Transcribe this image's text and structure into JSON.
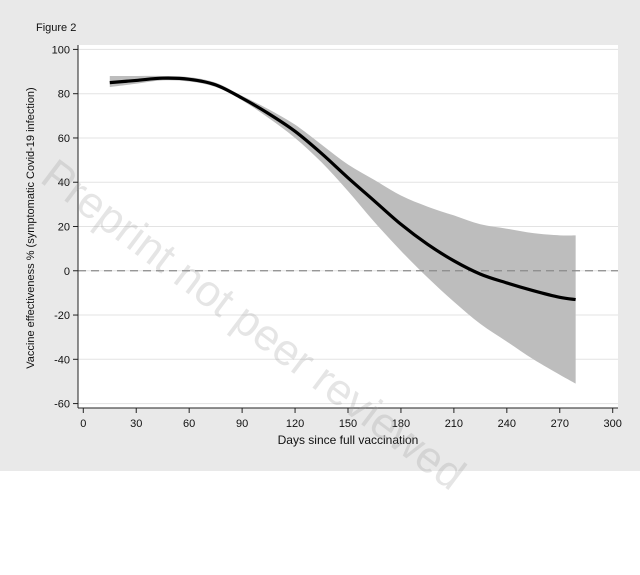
{
  "figure_label": "Figure 2",
  "watermark": "Preprint not peer reviewed",
  "colors": {
    "background": "#e9e9e9",
    "plot_area": "#ffffff",
    "line": "#000000",
    "band": "#bdbdbd",
    "reference_line": "#8a8a8a",
    "grid": "#e3e3e3"
  },
  "chart_data": {
    "type": "line",
    "title": "",
    "xlabel": "Days since full vaccination",
    "ylabel": "Vaccine effectiveness % (symptomatic Covid-19 infection)",
    "xlim": [
      -3,
      303
    ],
    "ylim": [
      -62,
      102
    ],
    "xticks": [
      0,
      30,
      60,
      90,
      120,
      150,
      180,
      210,
      240,
      270,
      300
    ],
    "yticks": [
      -60,
      -40,
      -20,
      0,
      20,
      40,
      60,
      80,
      100
    ],
    "grid": true,
    "reference_line_y": 0,
    "series": [
      {
        "x": [
          15,
          30,
          45,
          60,
          75,
          90,
          105,
          120,
          135,
          150,
          165,
          180,
          195,
          210,
          225,
          240,
          255,
          270,
          279
        ],
        "values": [
          85,
          86,
          87,
          86.5,
          84,
          78,
          71,
          63,
          53,
          42,
          31.5,
          21,
          12,
          4.5,
          -1.5,
          -5.5,
          -9,
          -12,
          -13
        ],
        "lower": [
          83,
          84.5,
          86,
          85.5,
          83,
          77,
          69,
          60,
          49,
          36,
          22,
          9,
          -3,
          -14,
          -24,
          -32,
          -40,
          -47,
          -51
        ],
        "upper": [
          88,
          88,
          88,
          87.5,
          85,
          79,
          73,
          66,
          57,
          48,
          41,
          34,
          29,
          25,
          21,
          19,
          17,
          16,
          16
        ]
      }
    ]
  }
}
